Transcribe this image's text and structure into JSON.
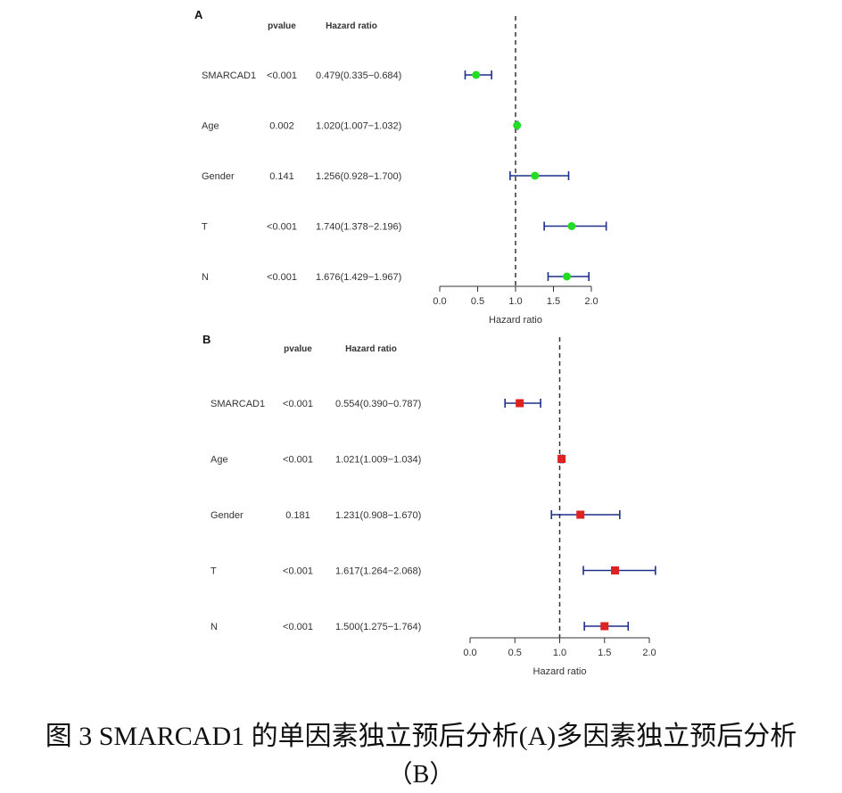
{
  "chart_data": [
    {
      "type": "forest",
      "panel_label": "A",
      "columns": {
        "pvalue": "pvalue",
        "hr": "Hazard ratio"
      },
      "xlabel": "Hazard ratio",
      "xlim": [
        0.0,
        2.0
      ],
      "xticks": [
        "0.0",
        "0.5",
        "1.0",
        "1.5",
        "2.0"
      ],
      "reference_line": 1.0,
      "marker": "circle",
      "marker_color": "#22dd22",
      "ci_color": "#1f2f8c",
      "rows": [
        {
          "label": "SMARCAD1",
          "pvalue": "<0.001",
          "hr_text": "0.479(0.335−0.684)",
          "hr": 0.479,
          "low": 0.335,
          "high": 0.684
        },
        {
          "label": "Age",
          "pvalue": "0.002",
          "hr_text": "1.020(1.007−1.032)",
          "hr": 1.02,
          "low": 1.007,
          "high": 1.032
        },
        {
          "label": "Gender",
          "pvalue": "0.141",
          "hr_text": "1.256(0.928−1.700)",
          "hr": 1.256,
          "low": 0.928,
          "high": 1.7
        },
        {
          "label": "T",
          "pvalue": "<0.001",
          "hr_text": "1.740(1.378−2.196)",
          "hr": 1.74,
          "low": 1.378,
          "high": 2.196
        },
        {
          "label": "N",
          "pvalue": "<0.001",
          "hr_text": "1.676(1.429−1.967)",
          "hr": 1.676,
          "low": 1.429,
          "high": 1.967
        }
      ]
    },
    {
      "type": "forest",
      "panel_label": "B",
      "columns": {
        "pvalue": "pvalue",
        "hr": "Hazard ratio"
      },
      "xlabel": "Hazard ratio",
      "xlim": [
        0.0,
        2.0
      ],
      "xticks": [
        "0.0",
        "0.5",
        "1.0",
        "1.5",
        "2.0"
      ],
      "reference_line": 1.0,
      "marker": "square",
      "marker_color": "#dd2222",
      "ci_color": "#1f2f8c",
      "rows": [
        {
          "label": "SMARCAD1",
          "pvalue": "<0.001",
          "hr_text": "0.554(0.390−0.787)",
          "hr": 0.554,
          "low": 0.39,
          "high": 0.787
        },
        {
          "label": "Age",
          "pvalue": "<0.001",
          "hr_text": "1.021(1.009−1.034)",
          "hr": 1.021,
          "low": 1.009,
          "high": 1.034
        },
        {
          "label": "Gender",
          "pvalue": "0.181",
          "hr_text": "1.231(0.908−1.670)",
          "hr": 1.231,
          "low": 0.908,
          "high": 1.67
        },
        {
          "label": "T",
          "pvalue": "<0.001",
          "hr_text": "1.617(1.264−2.068)",
          "hr": 1.617,
          "low": 1.264,
          "high": 2.068
        },
        {
          "label": "N",
          "pvalue": "<0.001",
          "hr_text": "1.500(1.275−1.764)",
          "hr": 1.5,
          "low": 1.275,
          "high": 1.764
        }
      ]
    }
  ],
  "caption": {
    "line1": "图 3 SMARCAD1 的单因素独立预后分析(A)多因素独立预后分析",
    "line2": "（B）"
  }
}
